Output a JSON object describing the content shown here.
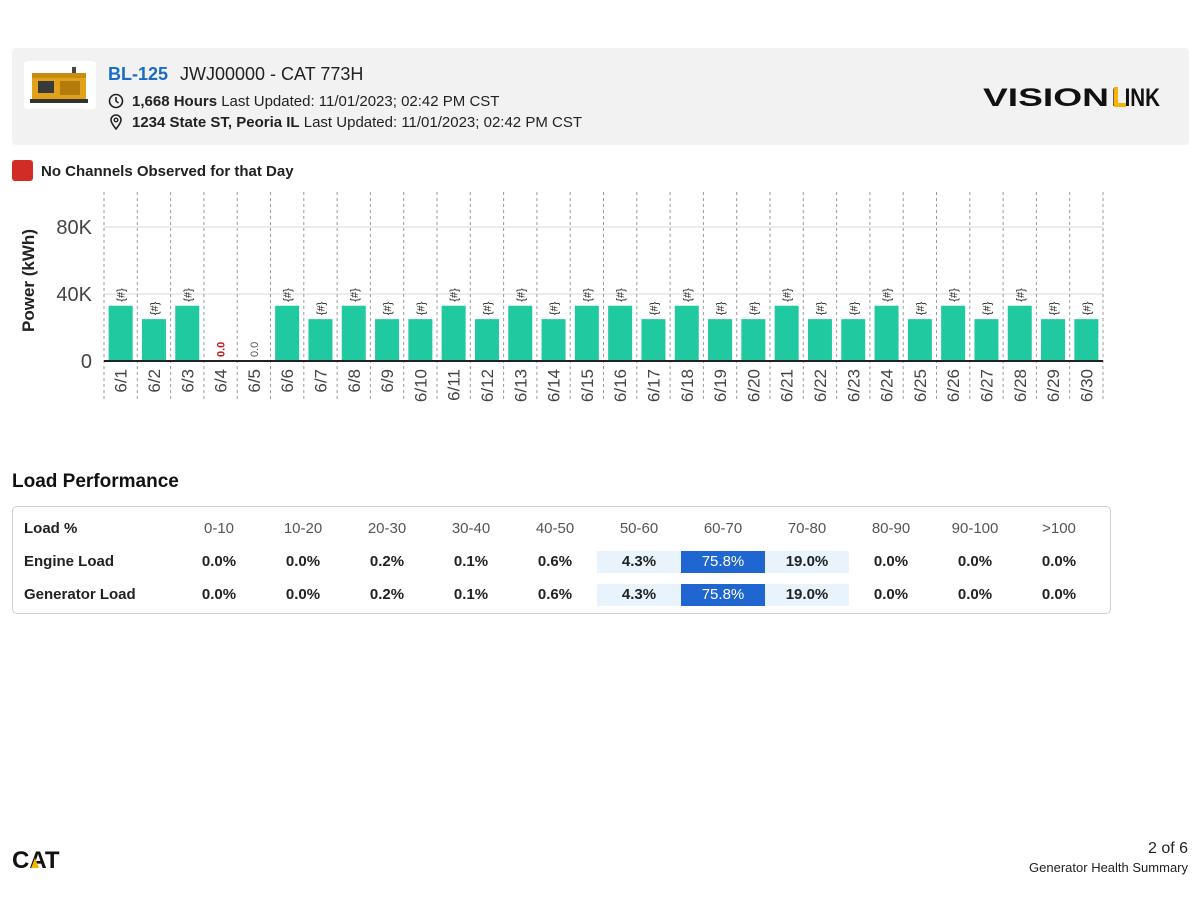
{
  "header": {
    "asset_id": "BL-125",
    "asset_name": "JWJ00000 - CAT 773H",
    "hours": "1,668 Hours",
    "hours_updated": "Last Updated: 11/01/2023; 02:42 PM CST",
    "location": "1234 State ST, Peoria IL",
    "location_updated": "Last Updated: 11/01/2023; 02:42 PM CST",
    "logo_text": "VISIONLINK",
    "logo_icon": "visionlink-logo",
    "thumbnail_icon": "generator-thumbnail"
  },
  "legend": {
    "label": "No Channels Observed for that Day",
    "color": "#d12d24"
  },
  "colors": {
    "bar": "#20c9a0",
    "missing": "#c8191e",
    "accent": "#1a6dc2",
    "highlight_dark": "#1f66d1",
    "highlight_light": "#e8f3fc"
  },
  "chart_data": {
    "type": "bar",
    "ylabel": "Power (kWh)",
    "ylim": [
      0,
      100000
    ],
    "yticks": [
      {
        "value": 0,
        "label": "0"
      },
      {
        "value": 40000,
        "label": "40K"
      },
      {
        "value": 80000,
        "label": "80K"
      }
    ],
    "categories": [
      "6/1",
      "6/2",
      "6/3",
      "6/4",
      "6/5",
      "6/6",
      "6/7",
      "6/8",
      "6/9",
      "6/10",
      "6/11",
      "6/12",
      "6/13",
      "6/14",
      "6/15",
      "6/16",
      "6/17",
      "6/18",
      "6/19",
      "6/20",
      "6/21",
      "6/22",
      "6/23",
      "6/24",
      "6/25",
      "6/26",
      "6/27",
      "6/28",
      "6/29",
      "6/30"
    ],
    "values": [
      33000,
      25000,
      33000,
      0,
      0,
      33000,
      25000,
      33000,
      25000,
      25000,
      33000,
      25000,
      33000,
      25000,
      33000,
      33000,
      25000,
      33000,
      25000,
      25000,
      33000,
      25000,
      25000,
      33000,
      25000,
      33000,
      25000,
      33000,
      25000,
      25000
    ],
    "data_labels": [
      "{#}",
      "{#}",
      "{#}",
      "0.0",
      "0.0",
      "{#}",
      "{#}",
      "{#}",
      "{#}",
      "{#}",
      "{#}",
      "{#}",
      "{#}",
      "{#}",
      "{#}",
      "{#}",
      "{#}",
      "{#}",
      "{#}",
      "{#}",
      "{#}",
      "{#}",
      "{#}",
      "{#}",
      "{#}",
      "{#}",
      "{#}",
      "{#}",
      "{#}",
      "{#}"
    ],
    "no_channel_days": [
      "6/4"
    ],
    "grid": true
  },
  "load_performance": {
    "title": "Load Performance",
    "header_label": "Load %",
    "columns": [
      "0-10",
      "10-20",
      "20-30",
      "30-40",
      "40-50",
      "50-60",
      "60-70",
      "70-80",
      "80-90",
      "90-100",
      ">100"
    ],
    "rows": [
      {
        "label": "Engine Load",
        "values": [
          "0.0%",
          "0.0%",
          "0.2%",
          "0.1%",
          "0.6%",
          "4.3%",
          "75.8%",
          "19.0%",
          "0.0%",
          "0.0%",
          "0.0%"
        ]
      },
      {
        "label": "Generator Load",
        "values": [
          "0.0%",
          "0.0%",
          "0.2%",
          "0.1%",
          "0.6%",
          "4.3%",
          "75.8%",
          "19.0%",
          "0.0%",
          "0.0%",
          "0.0%"
        ]
      }
    ],
    "highlight_columns": [
      "50-60",
      "60-70",
      "70-80"
    ],
    "peak_column": "60-70"
  },
  "footer": {
    "logo_text": "CAT",
    "page": "2 of 6",
    "report": "Generator Health Summary"
  }
}
